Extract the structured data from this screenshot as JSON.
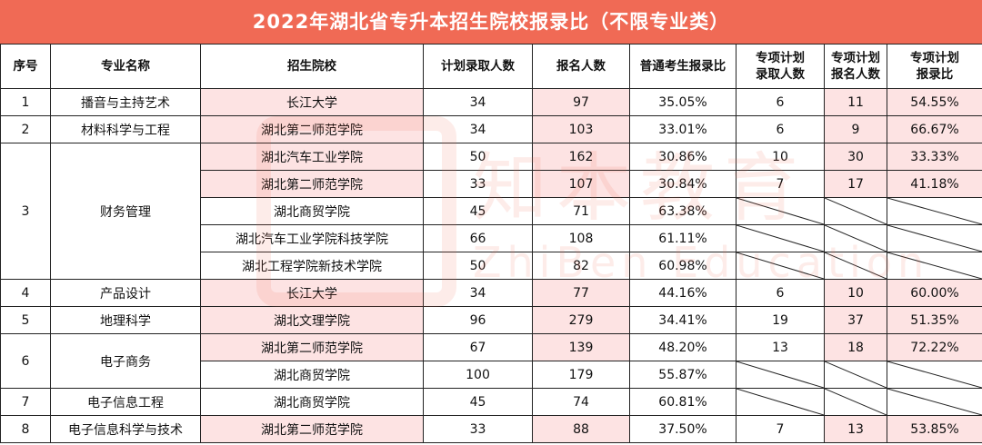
{
  "title": "2022年湖北省专升本招生院校报录比（不限专业类）",
  "headers": {
    "seq": "序号",
    "major": "专业名称",
    "school": "招生院校",
    "plan": "计划录取人数",
    "applicants": "报名人数",
    "ratio": "普通考生报录比",
    "sp_plan_1": "专项计划",
    "sp_plan_2": "录取人数",
    "sp_app_1": "专项计划",
    "sp_app_2": "报名人数",
    "sp_ratio_1": "专项计划",
    "sp_ratio_2": "报录比"
  },
  "watermark": {
    "cn": "知本教育",
    "en": "ZhiBen Education"
  },
  "groups": [
    {
      "seq": "1",
      "major": "播音与主持艺术",
      "rows": [
        {
          "school": "长江大学",
          "plan": "34",
          "applicants": "97",
          "ratio": "35.05%",
          "sp_plan": "6",
          "sp_app": "11",
          "sp_ratio": "54.55%"
        }
      ]
    },
    {
      "seq": "2",
      "major": "材料科学与工程",
      "rows": [
        {
          "school": "湖北第二师范学院",
          "plan": "34",
          "applicants": "103",
          "ratio": "33.01%",
          "sp_plan": "6",
          "sp_app": "9",
          "sp_ratio": "66.67%"
        }
      ]
    },
    {
      "seq": "3",
      "major": "财务管理",
      "rows": [
        {
          "school": "湖北汽车工业学院",
          "plan": "50",
          "applicants": "162",
          "ratio": "30.86%",
          "sp_plan": "10",
          "sp_app": "30",
          "sp_ratio": "33.33%"
        },
        {
          "school": "湖北第二师范学院",
          "plan": "33",
          "applicants": "107",
          "ratio": "30.84%",
          "sp_plan": "7",
          "sp_app": "17",
          "sp_ratio": "41.18%"
        },
        {
          "school": "湖北商贸学院",
          "plan": "45",
          "applicants": "71",
          "ratio": "63.38%",
          "sp_plan": null,
          "sp_app": null,
          "sp_ratio": null
        },
        {
          "school": "湖北汽车工业学院科技学院",
          "plan": "66",
          "applicants": "108",
          "ratio": "61.11%",
          "sp_plan": null,
          "sp_app": null,
          "sp_ratio": null
        },
        {
          "school": "湖北工程学院新技术学院",
          "plan": "50",
          "applicants": "82",
          "ratio": "60.98%",
          "sp_plan": null,
          "sp_app": null,
          "sp_ratio": null
        }
      ]
    },
    {
      "seq": "4",
      "major": "产品设计",
      "rows": [
        {
          "school": "长江大学",
          "plan": "34",
          "applicants": "77",
          "ratio": "44.16%",
          "sp_plan": "6",
          "sp_app": "10",
          "sp_ratio": "60.00%"
        }
      ]
    },
    {
      "seq": "5",
      "major": "地理科学",
      "rows": [
        {
          "school": "湖北文理学院",
          "plan": "96",
          "applicants": "279",
          "ratio": "34.41%",
          "sp_plan": "19",
          "sp_app": "37",
          "sp_ratio": "51.35%"
        }
      ]
    },
    {
      "seq": "6",
      "major": "电子商务",
      "rows": [
        {
          "school": "湖北第二师范学院",
          "plan": "67",
          "applicants": "139",
          "ratio": "48.20%",
          "sp_plan": "13",
          "sp_app": "18",
          "sp_ratio": "72.22%"
        },
        {
          "school": "湖北商贸学院",
          "plan": "100",
          "applicants": "179",
          "ratio": "55.87%",
          "sp_plan": null,
          "sp_app": null,
          "sp_ratio": null
        }
      ]
    },
    {
      "seq": "7",
      "major": "电子信息工程",
      "rows": [
        {
          "school": "湖北商贸学院",
          "plan": "45",
          "applicants": "74",
          "ratio": "60.81%",
          "sp_plan": null,
          "sp_app": null,
          "sp_ratio": null
        }
      ]
    },
    {
      "seq": "8",
      "major": "电子信息科学与技术",
      "rows": [
        {
          "school": "湖北第二师范学院",
          "plan": "33",
          "applicants": "88",
          "ratio": "37.50%",
          "sp_plan": "7",
          "sp_app": "13",
          "sp_ratio": "53.85%"
        }
      ]
    }
  ]
}
